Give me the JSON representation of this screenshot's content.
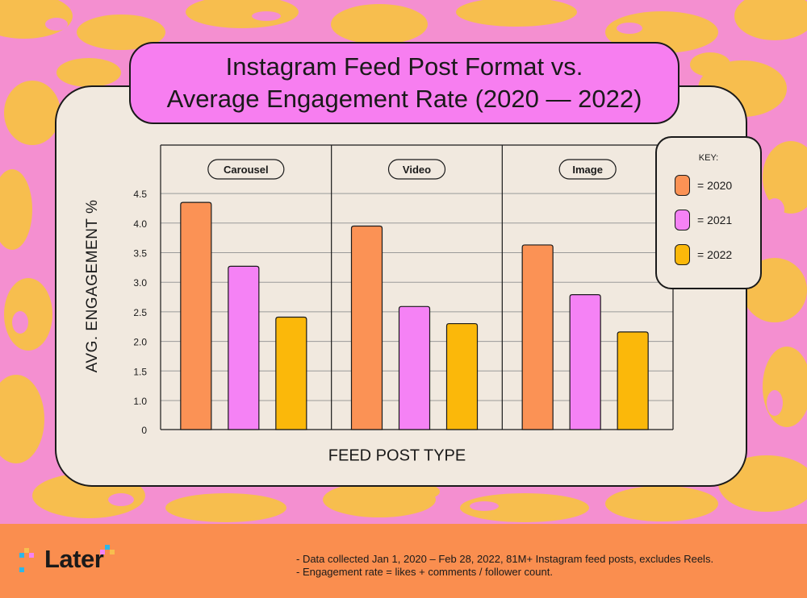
{
  "title": {
    "line1": "Instagram Feed Post Format vs.",
    "line2": "Average Engagement Rate (2020 — 2022)"
  },
  "colors": {
    "c2020": "#fb9255",
    "c2021": "#f582f5",
    "c2022": "#fbb80a",
    "bg_pink": "#f48fd0",
    "bg_yellow": "#f7be4e",
    "footer": "#fa8e4f"
  },
  "chart_data": {
    "type": "bar",
    "title": "Instagram Feed Post Format vs. Average Engagement Rate (2020 — 2022)",
    "xlabel": "FEED POST TYPE",
    "ylabel": "AVG. ENGAGEMENT %",
    "categories": [
      "Carousel",
      "Video",
      "Image"
    ],
    "series": [
      {
        "name": "2020",
        "values": [
          4.35,
          3.95,
          3.63
        ]
      },
      {
        "name": "2021",
        "values": [
          3.27,
          2.59,
          2.79
        ]
      },
      {
        "name": "2022",
        "values": [
          2.41,
          2.3,
          2.16
        ]
      }
    ],
    "y_ticks": [
      {
        "value": 0,
        "label": "0"
      },
      {
        "value": 1.0,
        "label": "1.0"
      },
      {
        "value": 1.5,
        "label": "1.5"
      },
      {
        "value": 2.0,
        "label": "2.0"
      },
      {
        "value": 2.5,
        "label": "2.5"
      },
      {
        "value": 3.0,
        "label": "3.0"
      },
      {
        "value": 3.5,
        "label": "3.5"
      },
      {
        "value": 4.0,
        "label": "4.0"
      },
      {
        "value": 4.5,
        "label": "4.5"
      }
    ],
    "grid": true,
    "legend_position": "top-right"
  },
  "key": {
    "title": "KEY:",
    "items": [
      {
        "label": "= 2020",
        "color": "#fb9255"
      },
      {
        "label": "= 2021",
        "color": "#f582f5"
      },
      {
        "label": "= 2022",
        "color": "#fbb80a"
      }
    ]
  },
  "logo": {
    "text": "Later"
  },
  "footer": {
    "note1": "- Data collected Jan 1, 2020 – Feb 28, 2022, 81M+ Instagram feed posts, excludes Reels.",
    "note2": "- Engagement rate = likes + comments / follower count."
  }
}
